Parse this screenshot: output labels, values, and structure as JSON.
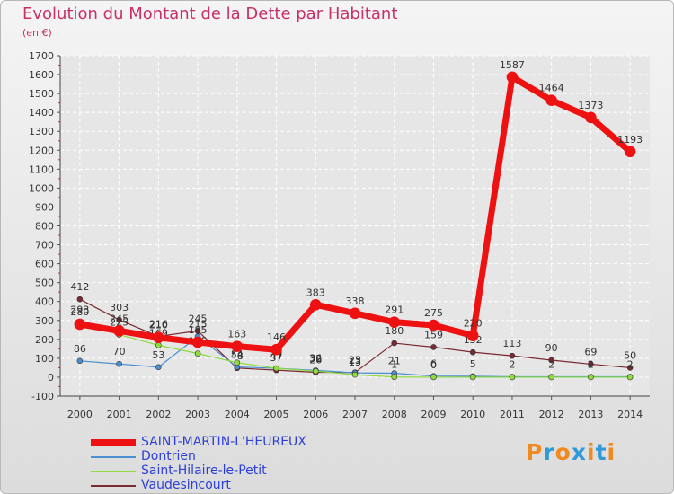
{
  "title": "Evolution du Montant de la Dette par Habitant",
  "subtitle": "(en €)",
  "logo": {
    "letters": [
      "P",
      "r",
      "o",
      "x",
      "i",
      "t",
      "i"
    ],
    "colors": [
      "#f08a1e",
      "#2f9ad8",
      "#f08a1e",
      "#2f9ad8",
      "#f08a1e",
      "#2f9ad8",
      "#f08a1e"
    ]
  },
  "chart_data": {
    "type": "line",
    "x": [
      "2000",
      "2001",
      "2002",
      "2003",
      "2004",
      "2005",
      "2006",
      "2007",
      "2008",
      "2009",
      "2010",
      "2011",
      "2012",
      "2013",
      "2014"
    ],
    "ylim": [
      -100,
      1700
    ],
    "yticks": [
      "-100",
      "0",
      "100",
      "200",
      "300",
      "400",
      "500",
      "600",
      "700",
      "800",
      "900",
      "1000",
      "1100",
      "1200",
      "1300",
      "1400",
      "1500",
      "1600",
      "1700"
    ],
    "grid": true,
    "legend_position": "bottom-left",
    "series": [
      {
        "name": "Vaudesincourt",
        "color": "#7a2a30",
        "width": 1.2,
        "marker": 3,
        "values": [
          412,
          303,
          216,
          245,
          48,
          37,
          26,
          25,
          180,
          159,
          132,
          113,
          90,
          69,
          50
        ],
        "labels": [
          "412",
          "303",
          "216",
          "245",
          "48",
          "37",
          "26",
          "25",
          "180",
          "159",
          "132",
          "113",
          "90",
          "69",
          "50"
        ]
      },
      {
        "name": "Dontrien",
        "color": "#4a8fd0",
        "width": 1.2,
        "marker": 3,
        "values": [
          86,
          70,
          53,
          215,
          54,
          47,
          36,
          23,
          21,
          6,
          5,
          2,
          2,
          2,
          2
        ],
        "labels": [
          "86",
          "70",
          "53",
          "215",
          "54",
          "47",
          "36",
          "23",
          "21",
          "6",
          "5",
          "2",
          "2",
          "2",
          "2"
        ]
      },
      {
        "name": "Saint-Hilaire-le-Petit",
        "color": "#8fdc3c",
        "width": 1.2,
        "marker": 3,
        "values": [
          293,
          225,
          169,
          125,
          77,
          47,
          32,
          13,
          1,
          0,
          0,
          0,
          0,
          0,
          0
        ],
        "labels": [
          "293",
          "225",
          "169",
          "125",
          "77",
          "47",
          "32",
          "13",
          "1",
          "0",
          "",
          "",
          "",
          "",
          ""
        ]
      },
      {
        "name": "SAINT-MARTIN-L'HEUREUX",
        "color": "#ee1111",
        "width": 7,
        "marker": 6,
        "values": [
          280,
          245,
          210,
          185,
          163,
          146,
          383,
          338,
          291,
          275,
          220,
          1587,
          1464,
          1373,
          1193
        ],
        "labels": [
          "280",
          "245",
          "210",
          "185",
          "163",
          "146",
          "383",
          "338",
          "291",
          "275",
          "220",
          "1587",
          "1464",
          "1373",
          "1193"
        ]
      }
    ]
  }
}
